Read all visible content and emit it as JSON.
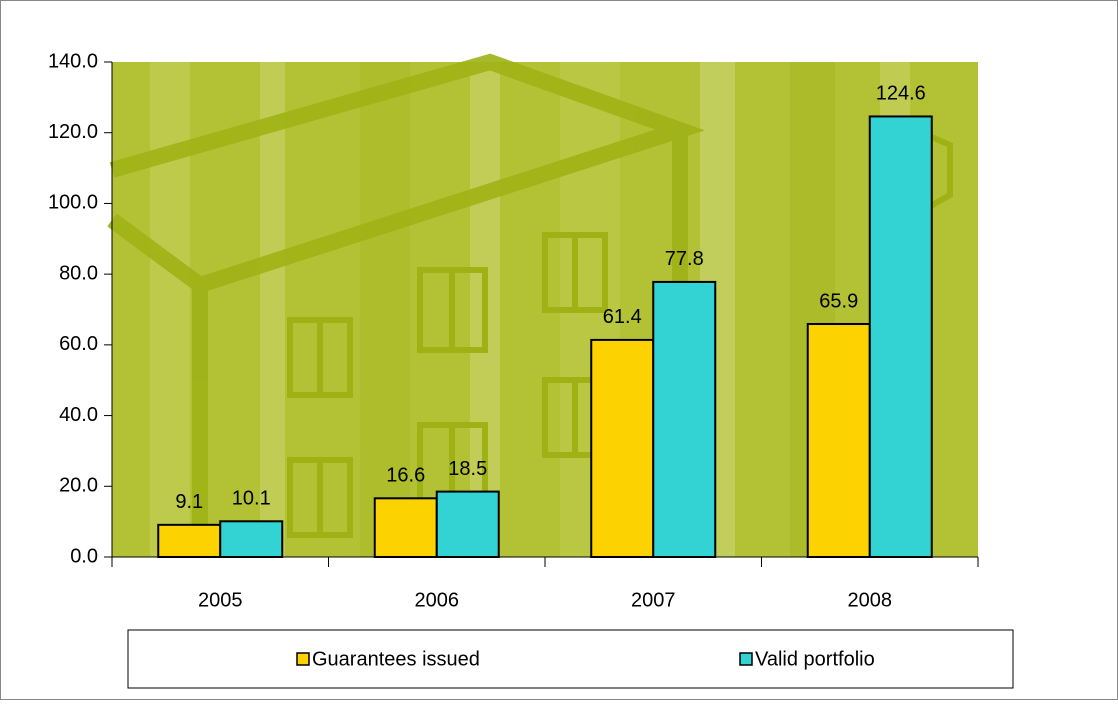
{
  "chart_data": {
    "type": "bar",
    "categories": [
      "2005",
      "2006",
      "2007",
      "2008"
    ],
    "series": [
      {
        "name": "Guarantees issued",
        "color": "#fcd200",
        "values": [
          9.1,
          16.6,
          61.4,
          65.9
        ]
      },
      {
        "name": "Valid portfolio",
        "color": "#33d3d3",
        "values": [
          10.1,
          18.5,
          77.8,
          124.6
        ]
      }
    ],
    "ylim": [
      0,
      140
    ],
    "yticks": [
      {
        "value": 0,
        "label": "0.0"
      },
      {
        "value": 20,
        "label": "20.0"
      },
      {
        "value": 40,
        "label": "40.0"
      },
      {
        "value": 60,
        "label": "60.0"
      },
      {
        "value": 80,
        "label": "80.0"
      },
      {
        "value": 100,
        "label": "100.0"
      },
      {
        "value": 120,
        "label": "120.0"
      },
      {
        "value": 140,
        "label": "140.0"
      }
    ],
    "grid": false,
    "legend": "bottom"
  }
}
